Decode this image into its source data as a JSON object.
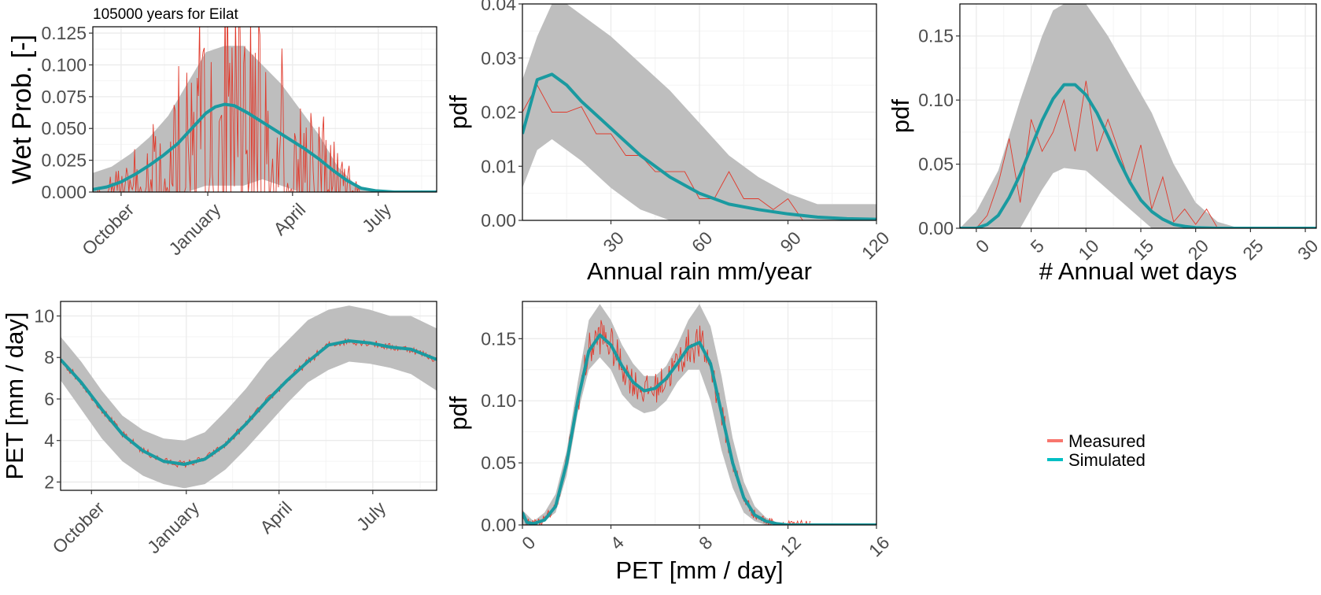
{
  "title": "105000 years for Eilat",
  "legend": {
    "position": "right",
    "items": [
      {
        "name": "Measured",
        "color": "#f8766d"
      },
      {
        "name": "Simulated",
        "color": "#00bfc4"
      }
    ]
  },
  "colors": {
    "measured": "#e0392b",
    "simulated": "#1a9aa0",
    "band": "#bebebe",
    "grid": "#ebebeb",
    "axis_text": "#4d4d4d"
  },
  "chart_data": [
    {
      "id": "wet-prob",
      "type": "line",
      "title": "105000 years for Eilat",
      "xlabel": "",
      "ylabel": "Wet Prob. [-]",
      "x_unit": "day of hydrological year (Sep 1 = 0)",
      "xlim": [
        0,
        365
      ],
      "ylim": [
        0,
        0.13
      ],
      "x_ticks": [
        {
          "value": 30,
          "label": "October"
        },
        {
          "value": 122,
          "label": "January"
        },
        {
          "value": 212,
          "label": "April"
        },
        {
          "value": 303,
          "label": "July"
        }
      ],
      "y_ticks": [
        {
          "value": 0,
          "label": "0.000"
        },
        {
          "value": 0.025,
          "label": "0.025"
        },
        {
          "value": 0.05,
          "label": "0.050"
        },
        {
          "value": 0.075,
          "label": "0.075"
        },
        {
          "value": 0.1,
          "label": "0.100"
        },
        {
          "value": 0.125,
          "label": "0.125"
        }
      ],
      "band": {
        "x": [
          0,
          20,
          40,
          60,
          80,
          100,
          120,
          140,
          160,
          180,
          200,
          220,
          240,
          260,
          280,
          300,
          320,
          365
        ],
        "lower": [
          0,
          0,
          0,
          0,
          0,
          0,
          0.005,
          0.005,
          0.005,
          0.01,
          0.005,
          0,
          0,
          0,
          0,
          0,
          0,
          0
        ],
        "upper": [
          0.015,
          0.02,
          0.03,
          0.043,
          0.06,
          0.085,
          0.11,
          0.115,
          0.115,
          0.1,
          0.085,
          0.065,
          0.045,
          0.02,
          0.005,
          0.002,
          0,
          0
        ]
      },
      "simulated": {
        "x": [
          0,
          15,
          30,
          45,
          60,
          75,
          90,
          105,
          120,
          130,
          140,
          150,
          165,
          180,
          195,
          210,
          225,
          240,
          255,
          270,
          285,
          300,
          320,
          340,
          365
        ],
        "y": [
          0.002,
          0.004,
          0.008,
          0.014,
          0.021,
          0.029,
          0.038,
          0.05,
          0.062,
          0.067,
          0.069,
          0.068,
          0.062,
          0.055,
          0.048,
          0.041,
          0.034,
          0.026,
          0.017,
          0.009,
          0.003,
          0.001,
          0,
          0,
          0
        ]
      },
      "measured": {
        "x_start": 5,
        "x_end": 325,
        "n": 260,
        "envelope": "simulated",
        "amplitude": 1.3
      }
    },
    {
      "id": "annual-rain",
      "type": "line",
      "title": "",
      "xlabel": "Annual rain mm/year",
      "ylabel": "pdf",
      "xlim": [
        0,
        120
      ],
      "ylim": [
        0,
        0.04
      ],
      "x_ticks": [
        {
          "value": 30,
          "label": "30"
        },
        {
          "value": 60,
          "label": "60"
        },
        {
          "value": 90,
          "label": "90"
        },
        {
          "value": 120,
          "label": "120"
        }
      ],
      "y_ticks": [
        {
          "value": 0,
          "label": "0.00"
        },
        {
          "value": 0.01,
          "label": "0.01"
        },
        {
          "value": 0.02,
          "label": "0.02"
        },
        {
          "value": 0.03,
          "label": "0.03"
        },
        {
          "value": 0.04,
          "label": "0.04"
        }
      ],
      "band": {
        "x": [
          0,
          5,
          10,
          15,
          20,
          30,
          40,
          50,
          60,
          70,
          80,
          90,
          100,
          110,
          120
        ],
        "lower": [
          0.006,
          0.013,
          0.015,
          0.013,
          0.011,
          0.006,
          0.002,
          0,
          0,
          0,
          0,
          0,
          0,
          0,
          0
        ],
        "upper": [
          0.026,
          0.034,
          0.04,
          0.04,
          0.038,
          0.034,
          0.029,
          0.024,
          0.018,
          0.012,
          0.008,
          0.005,
          0.003,
          0.003,
          0.003
        ]
      },
      "simulated": {
        "x": [
          0,
          5,
          10,
          15,
          20,
          30,
          40,
          50,
          60,
          70,
          80,
          90,
          100,
          110,
          120
        ],
        "y": [
          0.016,
          0.026,
          0.027,
          0.025,
          0.022,
          0.017,
          0.012,
          0.008,
          0.005,
          0.003,
          0.002,
          0.0012,
          0.0006,
          0.0003,
          0.0002
        ]
      },
      "measured": {
        "x": [
          0,
          5,
          10,
          15,
          20,
          25,
          30,
          35,
          40,
          45,
          50,
          55,
          60,
          65,
          70,
          75,
          80,
          85,
          90,
          95,
          100,
          110,
          120
        ],
        "y": [
          0.02,
          0.025,
          0.02,
          0.02,
          0.021,
          0.016,
          0.016,
          0.012,
          0.012,
          0.009,
          0.009,
          0.009,
          0.004,
          0.004,
          0.009,
          0.004,
          0.004,
          0.002,
          0.004,
          0,
          0,
          0,
          0
        ]
      }
    },
    {
      "id": "wet-days",
      "type": "line",
      "title": "",
      "xlabel": "# Annual wet days",
      "ylabel": "pdf",
      "xlim": [
        -1.5,
        31
      ],
      "ylim": [
        0,
        0.175
      ],
      "x_ticks": [
        {
          "value": 0,
          "label": "0"
        },
        {
          "value": 5,
          "label": "5"
        },
        {
          "value": 10,
          "label": "10"
        },
        {
          "value": 15,
          "label": "15"
        },
        {
          "value": 20,
          "label": "20"
        },
        {
          "value": 25,
          "label": "25"
        },
        {
          "value": 30,
          "label": "30"
        }
      ],
      "y_ticks": [
        {
          "value": 0,
          "label": "0.00"
        },
        {
          "value": 0.05,
          "label": "0.05"
        },
        {
          "value": 0.1,
          "label": "0.10"
        },
        {
          "value": 0.15,
          "label": "0.15"
        }
      ],
      "band": {
        "x": [
          -1.5,
          0,
          2,
          4,
          6,
          7,
          8,
          10,
          12,
          14,
          16,
          18,
          20,
          22,
          24,
          31
        ],
        "lower": [
          0,
          0,
          0,
          0,
          0.03,
          0.043,
          0.047,
          0.045,
          0.03,
          0.015,
          0,
          0,
          0,
          0,
          0,
          0
        ],
        "upper": [
          0,
          0.013,
          0.045,
          0.1,
          0.15,
          0.17,
          0.175,
          0.175,
          0.15,
          0.12,
          0.09,
          0.05,
          0.02,
          0.005,
          0,
          0
        ]
      },
      "simulated": {
        "x": [
          -1.5,
          0,
          1,
          2,
          3,
          4,
          5,
          6,
          7,
          8,
          9,
          10,
          11,
          12,
          13,
          14,
          15,
          16,
          17,
          18,
          19,
          20,
          22,
          24,
          31
        ],
        "y": [
          0,
          0,
          0.003,
          0.01,
          0.024,
          0.042,
          0.063,
          0.084,
          0.101,
          0.112,
          0.112,
          0.104,
          0.09,
          0.072,
          0.053,
          0.036,
          0.022,
          0.013,
          0.007,
          0.003,
          0.0015,
          0.0005,
          0,
          0,
          0
        ]
      },
      "measured": {
        "x": [
          -1.5,
          0,
          1,
          2,
          3,
          4,
          5,
          6,
          7,
          8,
          9,
          10,
          11,
          12,
          13,
          14,
          15,
          16,
          17,
          18,
          19,
          20,
          21,
          22,
          23,
          24,
          31
        ],
        "y": [
          0,
          0,
          0.01,
          0.035,
          0.07,
          0.02,
          0.085,
          0.06,
          0.075,
          0.1,
          0.06,
          0.115,
          0.06,
          0.085,
          0.06,
          0.035,
          0.065,
          0.015,
          0.04,
          0.005,
          0.015,
          0.003,
          0.015,
          0,
          0,
          0,
          0
        ]
      }
    },
    {
      "id": "pet-season",
      "type": "line",
      "title": "",
      "xlabel": "",
      "ylabel": "PET [mm / day]",
      "x_unit": "day of hydrological year (Sep 1 = 0)",
      "xlim": [
        0,
        365
      ],
      "ylim": [
        1.6,
        10.7
      ],
      "x_ticks": [
        {
          "value": 30,
          "label": "October"
        },
        {
          "value": 122,
          "label": "January"
        },
        {
          "value": 212,
          "label": "April"
        },
        {
          "value": 303,
          "label": "July"
        }
      ],
      "y_ticks": [
        {
          "value": 2,
          "label": "2"
        },
        {
          "value": 4,
          "label": "4"
        },
        {
          "value": 6,
          "label": "6"
        },
        {
          "value": 8,
          "label": "8"
        },
        {
          "value": 10,
          "label": "10"
        }
      ],
      "band": {
        "x": [
          0,
          20,
          40,
          60,
          80,
          100,
          120,
          140,
          160,
          180,
          200,
          220,
          240,
          260,
          280,
          300,
          320,
          340,
          365
        ],
        "lower": [
          6.9,
          5.5,
          4.1,
          3.0,
          2.3,
          1.9,
          1.7,
          1.9,
          2.6,
          3.6,
          4.7,
          5.8,
          6.8,
          7.4,
          7.8,
          7.7,
          7.5,
          7.2,
          6.4
        ],
        "upper": [
          9.0,
          7.8,
          6.4,
          5.2,
          4.5,
          4.1,
          4.0,
          4.4,
          5.4,
          6.5,
          7.8,
          8.8,
          9.8,
          10.3,
          10.5,
          10.3,
          10.0,
          10.0,
          9.4
        ]
      },
      "simulated": {
        "x": [
          0,
          20,
          40,
          60,
          80,
          100,
          120,
          140,
          160,
          180,
          200,
          220,
          240,
          260,
          280,
          300,
          320,
          340,
          365
        ],
        "y": [
          7.9,
          6.8,
          5.5,
          4.3,
          3.5,
          3.0,
          2.85,
          3.1,
          3.8,
          4.8,
          5.9,
          6.9,
          7.8,
          8.6,
          8.8,
          8.7,
          8.5,
          8.4,
          7.9
        ]
      },
      "measured": {
        "x_start": 0,
        "x_end": 365,
        "n": 280,
        "envelope": "simulated",
        "noise": 0.18
      }
    },
    {
      "id": "pet-pdf",
      "type": "line",
      "title": "",
      "xlabel": "PET [mm / day]",
      "ylabel": "pdf",
      "xlim": [
        0,
        16
      ],
      "ylim": [
        0,
        0.18
      ],
      "x_ticks": [
        {
          "value": 0,
          "label": "0"
        },
        {
          "value": 4,
          "label": "4"
        },
        {
          "value": 8,
          "label": "8"
        },
        {
          "value": 12,
          "label": "12"
        },
        {
          "value": 16,
          "label": "16"
        }
      ],
      "y_ticks": [
        {
          "value": 0,
          "label": "0.00"
        },
        {
          "value": 0.05,
          "label": "0.05"
        },
        {
          "value": 0.1,
          "label": "0.10"
        },
        {
          "value": 0.15,
          "label": "0.15"
        }
      ],
      "band": {
        "x": [
          0,
          0.5,
          1,
          1.5,
          2,
          2.5,
          3,
          3.5,
          4,
          4.5,
          5,
          5.5,
          6,
          6.5,
          7,
          7.5,
          8,
          8.5,
          9,
          9.5,
          10,
          10.5,
          11,
          11.5,
          12,
          16
        ],
        "lower": [
          0,
          0,
          0.003,
          0.01,
          0.04,
          0.09,
          0.125,
          0.135,
          0.125,
          0.105,
          0.095,
          0.09,
          0.092,
          0.1,
          0.115,
          0.125,
          0.125,
          0.1,
          0.06,
          0.03,
          0.01,
          0.003,
          0,
          0,
          0,
          0
        ],
        "upper": [
          0.012,
          0.003,
          0.01,
          0.025,
          0.06,
          0.115,
          0.165,
          0.178,
          0.165,
          0.145,
          0.13,
          0.12,
          0.12,
          0.128,
          0.145,
          0.165,
          0.178,
          0.16,
          0.12,
          0.07,
          0.035,
          0.015,
          0.006,
          0.002,
          0,
          0
        ]
      },
      "simulated": {
        "x": [
          0,
          0.2,
          0.5,
          1,
          1.5,
          2,
          2.5,
          3,
          3.5,
          4,
          4.5,
          5,
          5.5,
          6,
          6.5,
          7,
          7.5,
          8,
          8.5,
          9,
          9.5,
          10,
          10.5,
          11,
          11.5,
          12,
          16
        ],
        "y": [
          0.01,
          0.002,
          0.001,
          0.004,
          0.015,
          0.05,
          0.1,
          0.14,
          0.153,
          0.145,
          0.128,
          0.115,
          0.108,
          0.11,
          0.118,
          0.13,
          0.143,
          0.147,
          0.13,
          0.09,
          0.05,
          0.022,
          0.008,
          0.003,
          0.001,
          0,
          0
        ]
      },
      "measured": {
        "x_start": 0,
        "x_end": 13,
        "n": 300,
        "envelope": "simulated",
        "noise": 0.012
      }
    }
  ]
}
